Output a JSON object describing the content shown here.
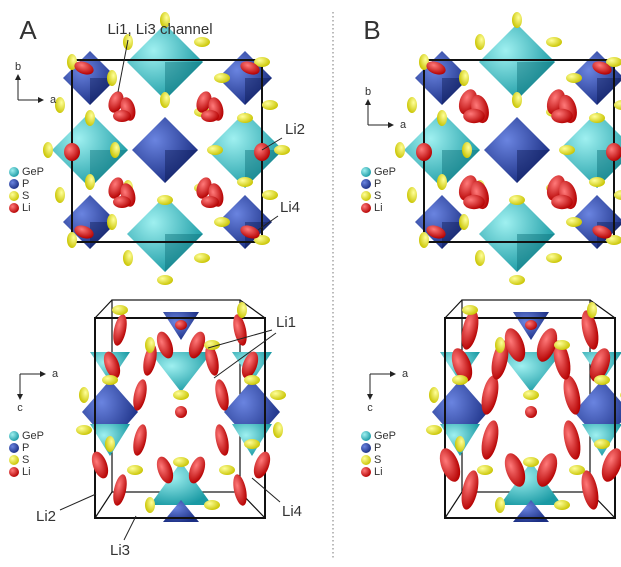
{
  "panels": [
    {
      "label": "A",
      "views": [
        {
          "axes": {
            "vertical": "b",
            "horizontal": "a"
          },
          "legend": [
            "GeP",
            "P",
            "S",
            "Li"
          ],
          "annotations": [
            "Li1, Li3 channel",
            "Li2",
            "Li4"
          ]
        },
        {
          "axes": {
            "vertical": "c",
            "horizontal": "a"
          },
          "legend": [
            "GeP",
            "P",
            "S",
            "Li"
          ],
          "annotations": [
            "Li1",
            "Li2",
            "Li4",
            "Li3"
          ]
        }
      ]
    },
    {
      "label": "B",
      "views": [
        {
          "axes": {
            "vertical": "b",
            "horizontal": "a"
          },
          "legend": [
            "GeP",
            "P",
            "S",
            "Li"
          ]
        },
        {
          "axes": {
            "vertical": "c",
            "horizontal": "a"
          },
          "legend": [
            "GeP",
            "P",
            "S",
            "Li"
          ]
        }
      ]
    }
  ]
}
